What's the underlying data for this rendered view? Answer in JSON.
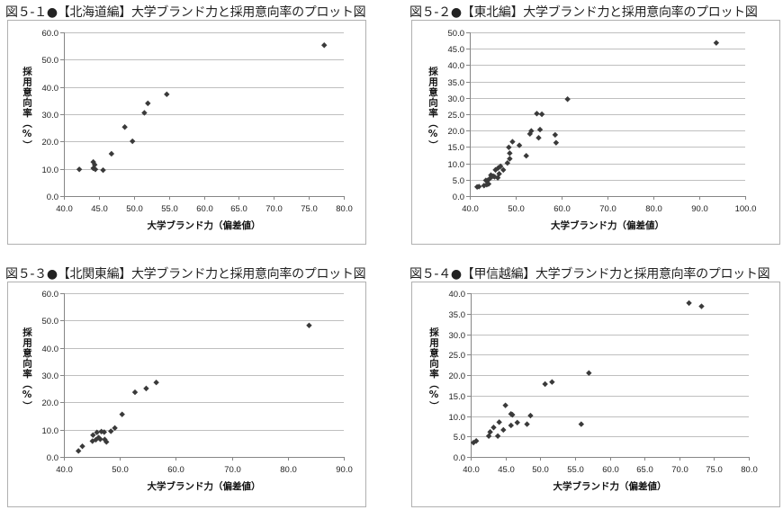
{
  "chart_data": [
    {
      "type": "scatter",
      "title": "図５-１●【北海道編】大学ブランド力と採用意向率のプロット図",
      "xlabel": "大学ブランド力（偏差値）",
      "ylabel": "採用意向率（%）",
      "xlim": [
        40,
        80
      ],
      "xstep": 5,
      "ylim": [
        0,
        60
      ],
      "ystep": 10,
      "grid": "horizontal",
      "x": [
        42.2,
        44.2,
        44.4,
        44.2,
        44.5,
        45.6,
        46.8,
        48.7,
        49.8,
        51.5,
        52.0,
        54.7,
        77.2
      ],
      "y": [
        9.8,
        12.5,
        11.5,
        10.2,
        9.8,
        9.5,
        15.5,
        25.3,
        20.1,
        30.5,
        34.0,
        37.3,
        55.3
      ]
    },
    {
      "type": "scatter",
      "title": "図５-２●【東北編】大学ブランド力と採用意向率のプロット図",
      "xlabel": "大学ブランド力（偏差値）",
      "ylabel": "採用意向率（%）",
      "xlim": [
        40,
        100
      ],
      "xstep": 10,
      "ylim": [
        0,
        50
      ],
      "ystep": 5,
      "grid": "horizontal",
      "x": [
        93.7,
        61.3,
        54.6,
        55.7,
        53.4,
        53.1,
        55.3,
        55.0,
        58.6,
        58.8,
        52.3,
        50.8,
        49.3,
        48.5,
        48.7,
        48.7,
        48.2,
        47.3,
        46.7,
        46.2,
        45.6,
        46.4,
        46.1,
        45.4,
        44.6,
        44.4,
        43.9,
        43.5,
        44.1,
        43.7,
        43.1,
        42.0,
        41.6,
        45.1
      ],
      "y": [
        46.8,
        29.6,
        25.2,
        25.0,
        19.9,
        19.0,
        20.3,
        17.8,
        18.7,
        16.3,
        12.3,
        15.5,
        16.6,
        14.9,
        13.1,
        11.4,
        10.1,
        8.0,
        9.1,
        8.6,
        8.0,
        6.8,
        5.6,
        5.9,
        6.4,
        5.4,
        4.8,
        4.8,
        3.7,
        3.5,
        3.2,
        2.9,
        2.8,
        6.1
      ]
    },
    {
      "type": "scatter",
      "title": "図５-３●【北関東編】大学ブランド力と採用意向率のプロット図",
      "xlabel": "大学ブランド力（偏差値）",
      "ylabel": "採用意向率（%）",
      "xlim": [
        40,
        90
      ],
      "xstep": 10,
      "ylim": [
        0,
        60
      ],
      "ystep": 10,
      "grid": "horizontal",
      "x": [
        83.8,
        56.5,
        54.7,
        52.7,
        50.4,
        49.1,
        48.4,
        47.2,
        46.7,
        45.9,
        45.2,
        45.1,
        45.7,
        46.2,
        46.5,
        47.3,
        47.6,
        43.3,
        42.6
      ],
      "y": [
        48.2,
        27.3,
        25.1,
        23.7,
        15.6,
        10.6,
        9.4,
        9.1,
        9.3,
        9.0,
        8.0,
        5.8,
        6.3,
        7.1,
        6.5,
        6.4,
        5.5,
        3.9,
        2.2
      ]
    },
    {
      "type": "scatter",
      "title": "図５-４●【甲信越編】大学ブランド力と採用意向率のプロット図",
      "xlabel": "大学ブランド力（偏差値）",
      "ylabel": "採用意向率（%）",
      "xlim": [
        40,
        80
      ],
      "xstep": 5,
      "ylim": [
        0,
        40
      ],
      "ystep": 5,
      "grid": "horizontal",
      "x": [
        71.4,
        73.2,
        57.0,
        51.7,
        50.7,
        55.9,
        45.0,
        45.8,
        46.0,
        48.6,
        48.1,
        46.7,
        45.8,
        44.7,
        44.1,
        43.9,
        42.6,
        42.8,
        43.3,
        40.8,
        40.4
      ],
      "y": [
        37.6,
        36.8,
        20.5,
        18.3,
        17.8,
        8.0,
        12.6,
        10.5,
        10.3,
        10.1,
        8.0,
        8.4,
        7.7,
        6.6,
        8.5,
        5.1,
        5.1,
        6.1,
        7.2,
        3.9,
        3.5
      ]
    }
  ],
  "colors": {
    "marker": "#3a3a3a",
    "grid": "#bfbfbf",
    "axis": "#868686",
    "frame": "#b0b0b0"
  }
}
